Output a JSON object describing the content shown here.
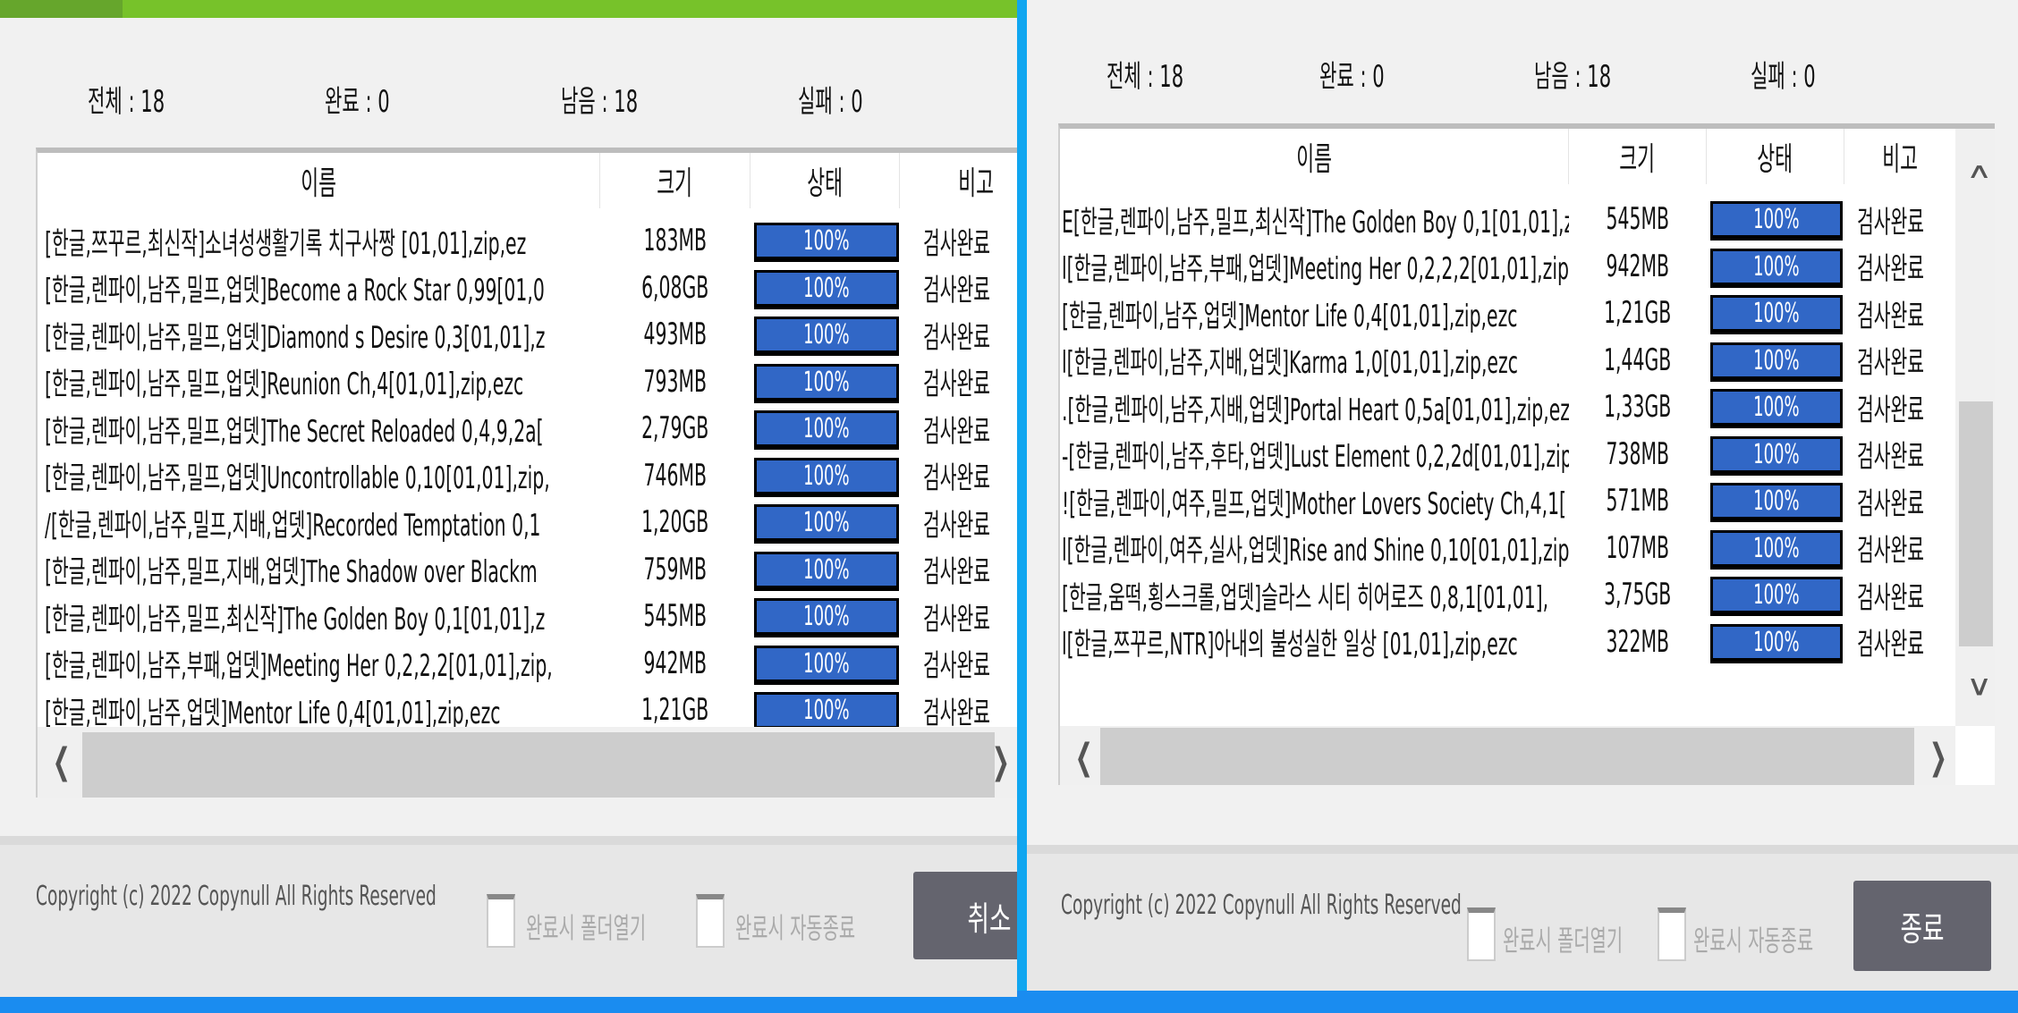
{
  "colors": {
    "progress": "#3167c6",
    "titlebar": "#77c22a",
    "button": "#64646e",
    "accent_border": "#10a6f0"
  },
  "left": {
    "stats": {
      "total": "전체 : 18",
      "done": "완료 : 0",
      "remaining": "남음 : 18",
      "failed": "실패 : 0"
    },
    "headers": {
      "name": "이름",
      "size": "크기",
      "status": "상태",
      "note": "비고"
    },
    "rows": [
      {
        "name": "[한글,쯔꾸르,최신작]소녀성생활기록 치구사짱 [01,01],zip,ez",
        "size": "183MB",
        "progress": "100%",
        "note": "검사완료"
      },
      {
        "name": "[한글,렌파이,남주,밀프,업뎃]Become a Rock Star 0,99[01,0",
        "size": "6,08GB",
        "progress": "100%",
        "note": "검사완료"
      },
      {
        "name": "[한글,렌파이,남주,밀프,업뎃]Diamond s Desire 0,3[01,01],z",
        "size": "493MB",
        "progress": "100%",
        "note": "검사완료"
      },
      {
        "name": "[한글,렌파이,남주,밀프,업뎃]Reunion Ch,4[01,01],zip,ezc",
        "size": "793MB",
        "progress": "100%",
        "note": "검사완료"
      },
      {
        "name": "[한글,렌파이,남주,밀프,업뎃]The Secret Reloaded 0,4,9,2a[",
        "size": "2,79GB",
        "progress": "100%",
        "note": "검사완료"
      },
      {
        "name": "[한글,렌파이,남주,밀프,업뎃]Uncontrollable 0,10[01,01],zip,",
        "size": "746MB",
        "progress": "100%",
        "note": "검사완료"
      },
      {
        "name": "/[한글,렌파이,남주,밀프,지배,업뎃]Recorded Temptation 0,1",
        "size": "1,20GB",
        "progress": "100%",
        "note": "검사완료"
      },
      {
        "name": "[한글,렌파이,남주,밀프,지배,업뎃]The Shadow over Blackm",
        "size": "759MB",
        "progress": "100%",
        "note": "검사완료"
      },
      {
        "name": "[한글,렌파이,남주,밀프,최신작]The Golden Boy 0,1[01,01],z",
        "size": "545MB",
        "progress": "100%",
        "note": "검사완료"
      },
      {
        "name": "[한글,렌파이,남주,부패,업뎃]Meeting Her 0,2,2,2[01,01],zip,",
        "size": "942MB",
        "progress": "100%",
        "note": "검사완료"
      },
      {
        "name": "[한글,렌파이,남주,업뎃]Mentor Life 0,4[01,01],zip,ezc",
        "size": "1,21GB",
        "progress": "100%",
        "note": "검사완료"
      }
    ],
    "footer": {
      "copyright": "Copyright (c) 2022 Copynull All Rights Reserved",
      "open_folder": "완료시 폴더열기",
      "auto_close": "완료시 자동종료",
      "button": "취소"
    }
  },
  "right": {
    "stats": {
      "total": "전체 : 18",
      "done": "완료 : 0",
      "remaining": "남음 : 18",
      "failed": "실패 : 0"
    },
    "headers": {
      "name": "이름",
      "size": "크기",
      "status": "상태",
      "note": "비고"
    },
    "rows": [
      {
        "name": "E[한글,렌파이,남주,밀프,최신작]The Golden Boy 0,1[01,01],z",
        "size": "545MB",
        "progress": "100%",
        "note": "검사완료"
      },
      {
        "name": "l[한글,렌파이,남주,부패,업뎃]Meeting Her 0,2,2,2[01,01],zip,",
        "size": "942MB",
        "progress": "100%",
        "note": "검사완료"
      },
      {
        "name": " [한글,렌파이,남주,업뎃]Mentor Life 0,4[01,01],zip,ezc",
        "size": "1,21GB",
        "progress": "100%",
        "note": "검사완료"
      },
      {
        "name": "l[한글,렌파이,남주,지배,업뎃]Karma 1,0[01,01],zip,ezc",
        "size": "1,44GB",
        "progress": "100%",
        "note": "검사완료"
      },
      {
        "name": ".[한글,렌파이,남주,지배,업뎃]Portal Heart 0,5a[01,01],zip,ez",
        "size": "1,33GB",
        "progress": "100%",
        "note": "검사완료"
      },
      {
        "name": "-[한글,렌파이,남주,후타,업뎃]Lust Element 0,2,2d[01,01],zip",
        "size": "738MB",
        "progress": "100%",
        "note": "검사완료"
      },
      {
        "name": "![한글,렌파이,여주,밀프,업뎃]Mother Lovers Society Ch,4,1[",
        "size": "571MB",
        "progress": "100%",
        "note": "검사완료"
      },
      {
        "name": "l[한글,렌파이,여주,실사,업뎃]Rise and Shine 0,10[01,01],zip",
        "size": "107MB",
        "progress": "100%",
        "note": "검사완료"
      },
      {
        "name": "[한글,움떡,횡스크롤,업뎃]슬라스 시티 히어로즈 0,8,1[01,01],",
        "size": "3,75GB",
        "progress": "100%",
        "note": "검사완료"
      },
      {
        "name": "l[한글,쯔꾸르,NTR]아내의 불성실한 일상 [01,01],zip,ezc",
        "size": "322MB",
        "progress": "100%",
        "note": "검사완료"
      }
    ],
    "footer": {
      "copyright": "Copyright (c) 2022 Copynull All Rights Reserved",
      "open_folder": "완료시 폴더열기",
      "auto_close": "완료시 자동종료",
      "button": "종료"
    }
  }
}
